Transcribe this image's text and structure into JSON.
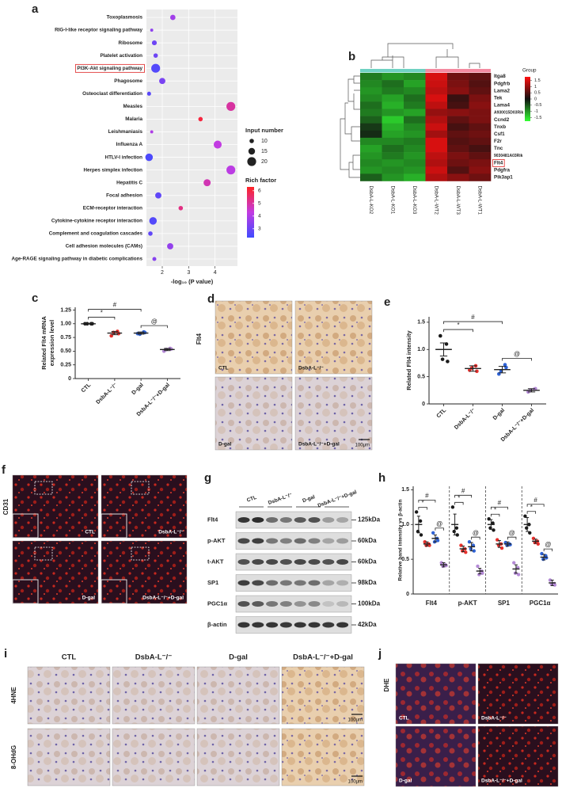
{
  "chart_data": [
    {
      "panel": "a",
      "type": "scatter",
      "categories": [
        "Toxoplasmosis",
        "RIG-I-like receptor signaling pathway",
        "Ribosome",
        "Platelet activation",
        "PI3K-Akt signaling pathway",
        "Phagosome",
        "Osteoclast differentiation",
        "Measles",
        "Malaria",
        "Leishmaniasis",
        "Influenza A",
        "HTLV-I infection",
        "Herpes simplex infection",
        "Hepatitis C",
        "Focal adhesion",
        "ECM-receptor interaction",
        "Cytokine-cytokine receptor interaction",
        "Complement and coagulation cascades",
        "Cell adhesion molecules (CAMs)",
        "Age-RAGE signaling pathway in diabetic complications"
      ],
      "values": [
        2.4,
        1.6,
        1.7,
        1.75,
        1.75,
        2.0,
        1.5,
        4.6,
        3.45,
        1.6,
        4.1,
        1.5,
        4.6,
        3.7,
        1.85,
        2.7,
        1.65,
        1.55,
        2.3,
        1.7
      ],
      "sizes": [
        12,
        7,
        11,
        10,
        20,
        14,
        9,
        20,
        10,
        7,
        18,
        17,
        20,
        16,
        14,
        10,
        17,
        10,
        14,
        9
      ],
      "rich": [
        3.8,
        3.5,
        3.0,
        3.0,
        2.6,
        3.2,
        2.7,
        5.0,
        6.0,
        4.0,
        4.3,
        2.5,
        4.2,
        4.8,
        2.8,
        5.3,
        2.6,
        2.8,
        3.6,
        3.4
      ],
      "highlight": "PI3K-Akt signaling pathway",
      "xlabel": "-log₁₀ (P value)",
      "xlim": [
        1.4,
        4.85
      ],
      "xticks": [
        2,
        3,
        4
      ],
      "grid": true,
      "size_legend": {
        "title": "Input number",
        "values": [
          10,
          15,
          20
        ]
      },
      "color_legend": {
        "title": "Rich factor",
        "ticks": [
          3,
          4,
          5,
          6
        ],
        "lim": [
          2.3,
          6.3
        ]
      },
      "colors": [
        "#3f4bff",
        "#c23be2",
        "#ff2424"
      ]
    },
    {
      "panel": "b",
      "type": "heatmap",
      "rows": [
        "Itga8",
        "Pdgfrb",
        "Lama2",
        "Tek",
        "Lama4",
        "A930015D03Rik",
        "Ccnd2",
        "Tnxb",
        "Csf1",
        "F2r",
        "Tnc",
        "9030481A03Rik",
        "Flt4",
        "Pdgfra",
        "Pik3ap1"
      ],
      "columns": [
        "DsbA-L-KO2",
        "DsbA-L-KO1",
        "DsbA-L-KO3",
        "DsbA-L-WT2",
        "DsbA-L-WT3",
        "DsbA-L-WT1"
      ],
      "column_colors": [
        "#6fd2c2",
        "#6fd2c2",
        "#6fd2c2",
        "#f48aa0",
        "#f48aa0",
        "#f48aa0"
      ],
      "values": [
        [
          -0.8,
          -1.0,
          -0.9,
          1.5,
          0.7,
          0.6
        ],
        [
          -0.9,
          -0.7,
          -1.1,
          1.4,
          0.8,
          0.5
        ],
        [
          -1.0,
          -0.8,
          -0.9,
          1.3,
          0.9,
          0.6
        ],
        [
          -0.9,
          -1.1,
          -0.7,
          1.5,
          0.3,
          0.8
        ],
        [
          -0.7,
          -1.2,
          -0.8,
          1.3,
          0.4,
          0.9
        ],
        [
          -0.8,
          -1.0,
          -1.1,
          1.0,
          0.9,
          0.8
        ],
        [
          -0.6,
          -1.4,
          -0.7,
          1.2,
          0.6,
          0.8
        ],
        [
          -0.3,
          -1.2,
          -0.9,
          1.4,
          0.4,
          0.6
        ],
        [
          -0.2,
          -1.1,
          -1.0,
          1.1,
          0.6,
          0.7
        ],
        [
          -0.9,
          -0.9,
          -0.8,
          1.5,
          0.5,
          0.6
        ],
        [
          -1.1,
          -0.7,
          -0.9,
          1.5,
          0.6,
          0.4
        ],
        [
          -1.0,
          -0.8,
          -1.0,
          1.3,
          0.8,
          0.6
        ],
        [
          -0.9,
          -1.0,
          -0.9,
          1.2,
          0.7,
          0.8
        ],
        [
          -1.0,
          -0.9,
          -1.0,
          1.4,
          0.5,
          0.9
        ],
        [
          -0.6,
          -1.0,
          -1.2,
          1.2,
          0.9,
          0.7
        ]
      ],
      "highlight": "Flt4",
      "legend_title": "Group",
      "clim": [
        -1.8,
        1.8
      ],
      "cticks": [
        1.5,
        1,
        0.5,
        0,
        -0.5,
        -1,
        -1.5
      ],
      "colors": [
        "#33ff33",
        "#111111",
        "#ff1010"
      ]
    },
    {
      "panel": "c",
      "type": "dot",
      "ylabel": [
        "Related Flt4 mRNA",
        "expression level"
      ],
      "categories": [
        "CTL",
        "DsbA-L⁻/⁻",
        "D-gal",
        "DsbA-L⁻/⁻+D-gal"
      ],
      "colors": [
        "#1a1a1a",
        "#e8302c",
        "#2f63d6",
        "#b48ad6"
      ],
      "values": [
        1.0,
        0.83,
        0.83,
        0.53
      ],
      "errors": [
        0.005,
        0.03,
        0.02,
        0.02
      ],
      "points": [
        [
          1.0,
          1.0,
          1.0,
          1.0
        ],
        [
          0.78,
          0.86,
          0.84,
          0.82
        ],
        [
          0.82,
          0.85,
          0.81,
          0.84
        ],
        [
          0.5,
          0.55,
          0.53,
          0.54
        ]
      ],
      "ylim": [
        0,
        1.3
      ],
      "yticks": [
        0,
        0.25,
        {
          "value": 0.5,
          "label": "0.50"
        },
        0.75,
        {
          "value": 1,
          "label": "1.00"
        },
        1.25
      ],
      "annotations": [
        {
          "label": "#",
          "between": [
            0,
            2
          ]
        },
        {
          "label": "*",
          "between": [
            0,
            1
          ]
        },
        {
          "label": "@",
          "between": [
            2,
            3
          ]
        }
      ]
    },
    {
      "panel": "e",
      "type": "dot",
      "ylabel": [
        "Related Flt4 intensity"
      ],
      "categories": [
        "CTL",
        "DsbA-L⁻/⁻",
        "D-gal",
        "DsbA-L⁻/⁻+D-gal"
      ],
      "colors": [
        "#1a1a1a",
        "#e8302c",
        "#2f63d6",
        "#b48ad6"
      ],
      "values": [
        1.0,
        0.65,
        0.63,
        0.25
      ],
      "errors": [
        0.12,
        0.05,
        0.06,
        0.03
      ],
      "points": [
        [
          1.25,
          1.1,
          0.82,
          0.78
        ],
        [
          0.62,
          0.7,
          0.66,
          0.6
        ],
        [
          0.55,
          0.72,
          0.6,
          0.67
        ],
        [
          0.22,
          0.27,
          0.25,
          0.28
        ]
      ],
      "ylim": [
        0,
        1.6
      ],
      "yticks": [
        0,
        0.5,
        {
          "value": 1,
          "label": "1.0"
        },
        1.5
      ],
      "annotations": [
        {
          "label": "#",
          "between": [
            0,
            2
          ]
        },
        {
          "label": "*",
          "between": [
            0,
            1
          ]
        },
        {
          "label": "@",
          "between": [
            2,
            3
          ]
        }
      ]
    },
    {
      "panel": "h",
      "type": "grouped_dot",
      "ylabel": "Relative band intensity vs β-actin",
      "groups": [
        "Flt4",
        "p-AKT",
        "SP1",
        "PGC1α"
      ],
      "series": [
        {
          "color": "#1a1a1a",
          "values": [
            1.0,
            1.0,
            1.0,
            1.0
          ],
          "errors": [
            0.12,
            0.15,
            0.07,
            0.1
          ],
          "points": [
            [
              1.18,
              1.05,
              0.9,
              0.85
            ],
            [
              1.25,
              0.95,
              0.9,
              0.85
            ],
            [
              1.08,
              1.02,
              0.95,
              0.92
            ],
            [
              1.12,
              1.0,
              0.95,
              0.88
            ]
          ]
        },
        {
          "color": "#e8302c",
          "values": [
            0.72,
            0.65,
            0.72,
            0.76
          ],
          "errors": [
            0.03,
            0.04,
            0.05,
            0.03
          ],
          "points": [
            [
              0.75,
              0.72,
              0.7,
              0.7
            ],
            [
              0.7,
              0.65,
              0.62,
              0.6
            ],
            [
              0.78,
              0.72,
              0.7,
              0.66
            ],
            [
              0.8,
              0.76,
              0.74,
              0.72
            ]
          ]
        },
        {
          "color": "#2f63d6",
          "values": [
            0.8,
            0.68,
            0.72,
            0.53
          ],
          "errors": [
            0.05,
            0.06,
            0.03,
            0.04
          ],
          "points": [
            [
              0.88,
              0.8,
              0.75,
              0.77
            ],
            [
              0.75,
              0.7,
              0.65,
              0.62
            ],
            [
              0.74,
              0.72,
              0.7,
              0.71
            ],
            [
              0.58,
              0.55,
              0.5,
              0.52
            ]
          ]
        },
        {
          "color": "#b48ad6",
          "values": [
            0.42,
            0.33,
            0.36,
            0.16
          ],
          "errors": [
            0.03,
            0.04,
            0.06,
            0.04
          ],
          "points": [
            [
              0.45,
              0.42,
              0.4,
              0.41
            ],
            [
              0.4,
              0.33,
              0.28,
              0.3
            ],
            [
              0.45,
              0.38,
              0.3,
              0.28
            ],
            [
              0.2,
              0.15,
              0.14,
              0.13
            ]
          ]
        }
      ],
      "ylim": [
        0,
        1.55
      ],
      "yticks": [
        0,
        0.5,
        {
          "value": 1,
          "label": "1.0"
        },
        1.5
      ],
      "annotations": [
        {
          "label": "#",
          "group": 0,
          "between": [
            0,
            2
          ]
        },
        {
          "label": "*",
          "group": 0,
          "between": [
            0,
            1
          ]
        },
        {
          "label": "@",
          "group": 0,
          "between": [
            2,
            3
          ]
        },
        {
          "label": "#",
          "group": 1,
          "between": [
            0,
            2
          ]
        },
        {
          "label": "*",
          "group": 1,
          "between": [
            0,
            1
          ]
        },
        {
          "label": "@",
          "group": 1,
          "between": [
            2,
            3
          ]
        },
        {
          "label": "#",
          "group": 2,
          "between": [
            0,
            2
          ]
        },
        {
          "label": "*",
          "group": 2,
          "between": [
            0,
            1
          ]
        },
        {
          "label": "@",
          "group": 2,
          "between": [
            2,
            3
          ]
        },
        {
          "label": "#",
          "group": 3,
          "between": [
            0,
            2
          ]
        },
        {
          "label": "*",
          "group": 3,
          "between": [
            0,
            1
          ]
        },
        {
          "label": "@",
          "group": 3,
          "between": [
            2,
            3
          ]
        }
      ]
    }
  ],
  "figure": {
    "d": {
      "label": "d",
      "row_label": "Flt4",
      "images": [
        "CTL",
        "DsbA-L⁻/⁻",
        "D-gal",
        "DsbA-L⁻/⁻+D-gal"
      ],
      "scale": "100μm"
    },
    "f": {
      "label": "f",
      "row_label": "CD31",
      "images": [
        "CTL",
        "DsbA-L⁻/⁻",
        "D-gal",
        "DsbA-L⁻/⁻+D-gal"
      ]
    },
    "g": {
      "label": "g",
      "lanes": [
        "CTL",
        "DsbA-L⁻/⁻",
        "D-gal",
        "DsbA-L⁻/⁻+D-gal"
      ],
      "rows": [
        {
          "name": "Flt4",
          "size": "125kDa"
        },
        {
          "name": "p-AKT",
          "size": "60kDa"
        },
        {
          "name": "t-AKT",
          "size": "60kDa"
        },
        {
          "name": "SP1",
          "size": "98kDa"
        },
        {
          "name": "PGC1α",
          "size": "100kDa"
        },
        {
          "name": "β-actin",
          "size": "42kDa"
        }
      ]
    },
    "i": {
      "label": "i",
      "columns": [
        "CTL",
        "DsbA-L⁻/⁻",
        "D-gal",
        "DsbA-L⁻/⁻+D-gal"
      ],
      "rows": [
        "4HNE",
        "8-OHdG"
      ],
      "scale": "100μm"
    },
    "j": {
      "label": "j",
      "row_label": "DHE",
      "images": [
        "CTL",
        "DsbA-L⁻/⁻",
        "D-gal",
        "DsbA-L⁻/⁻+D-gal"
      ]
    }
  }
}
